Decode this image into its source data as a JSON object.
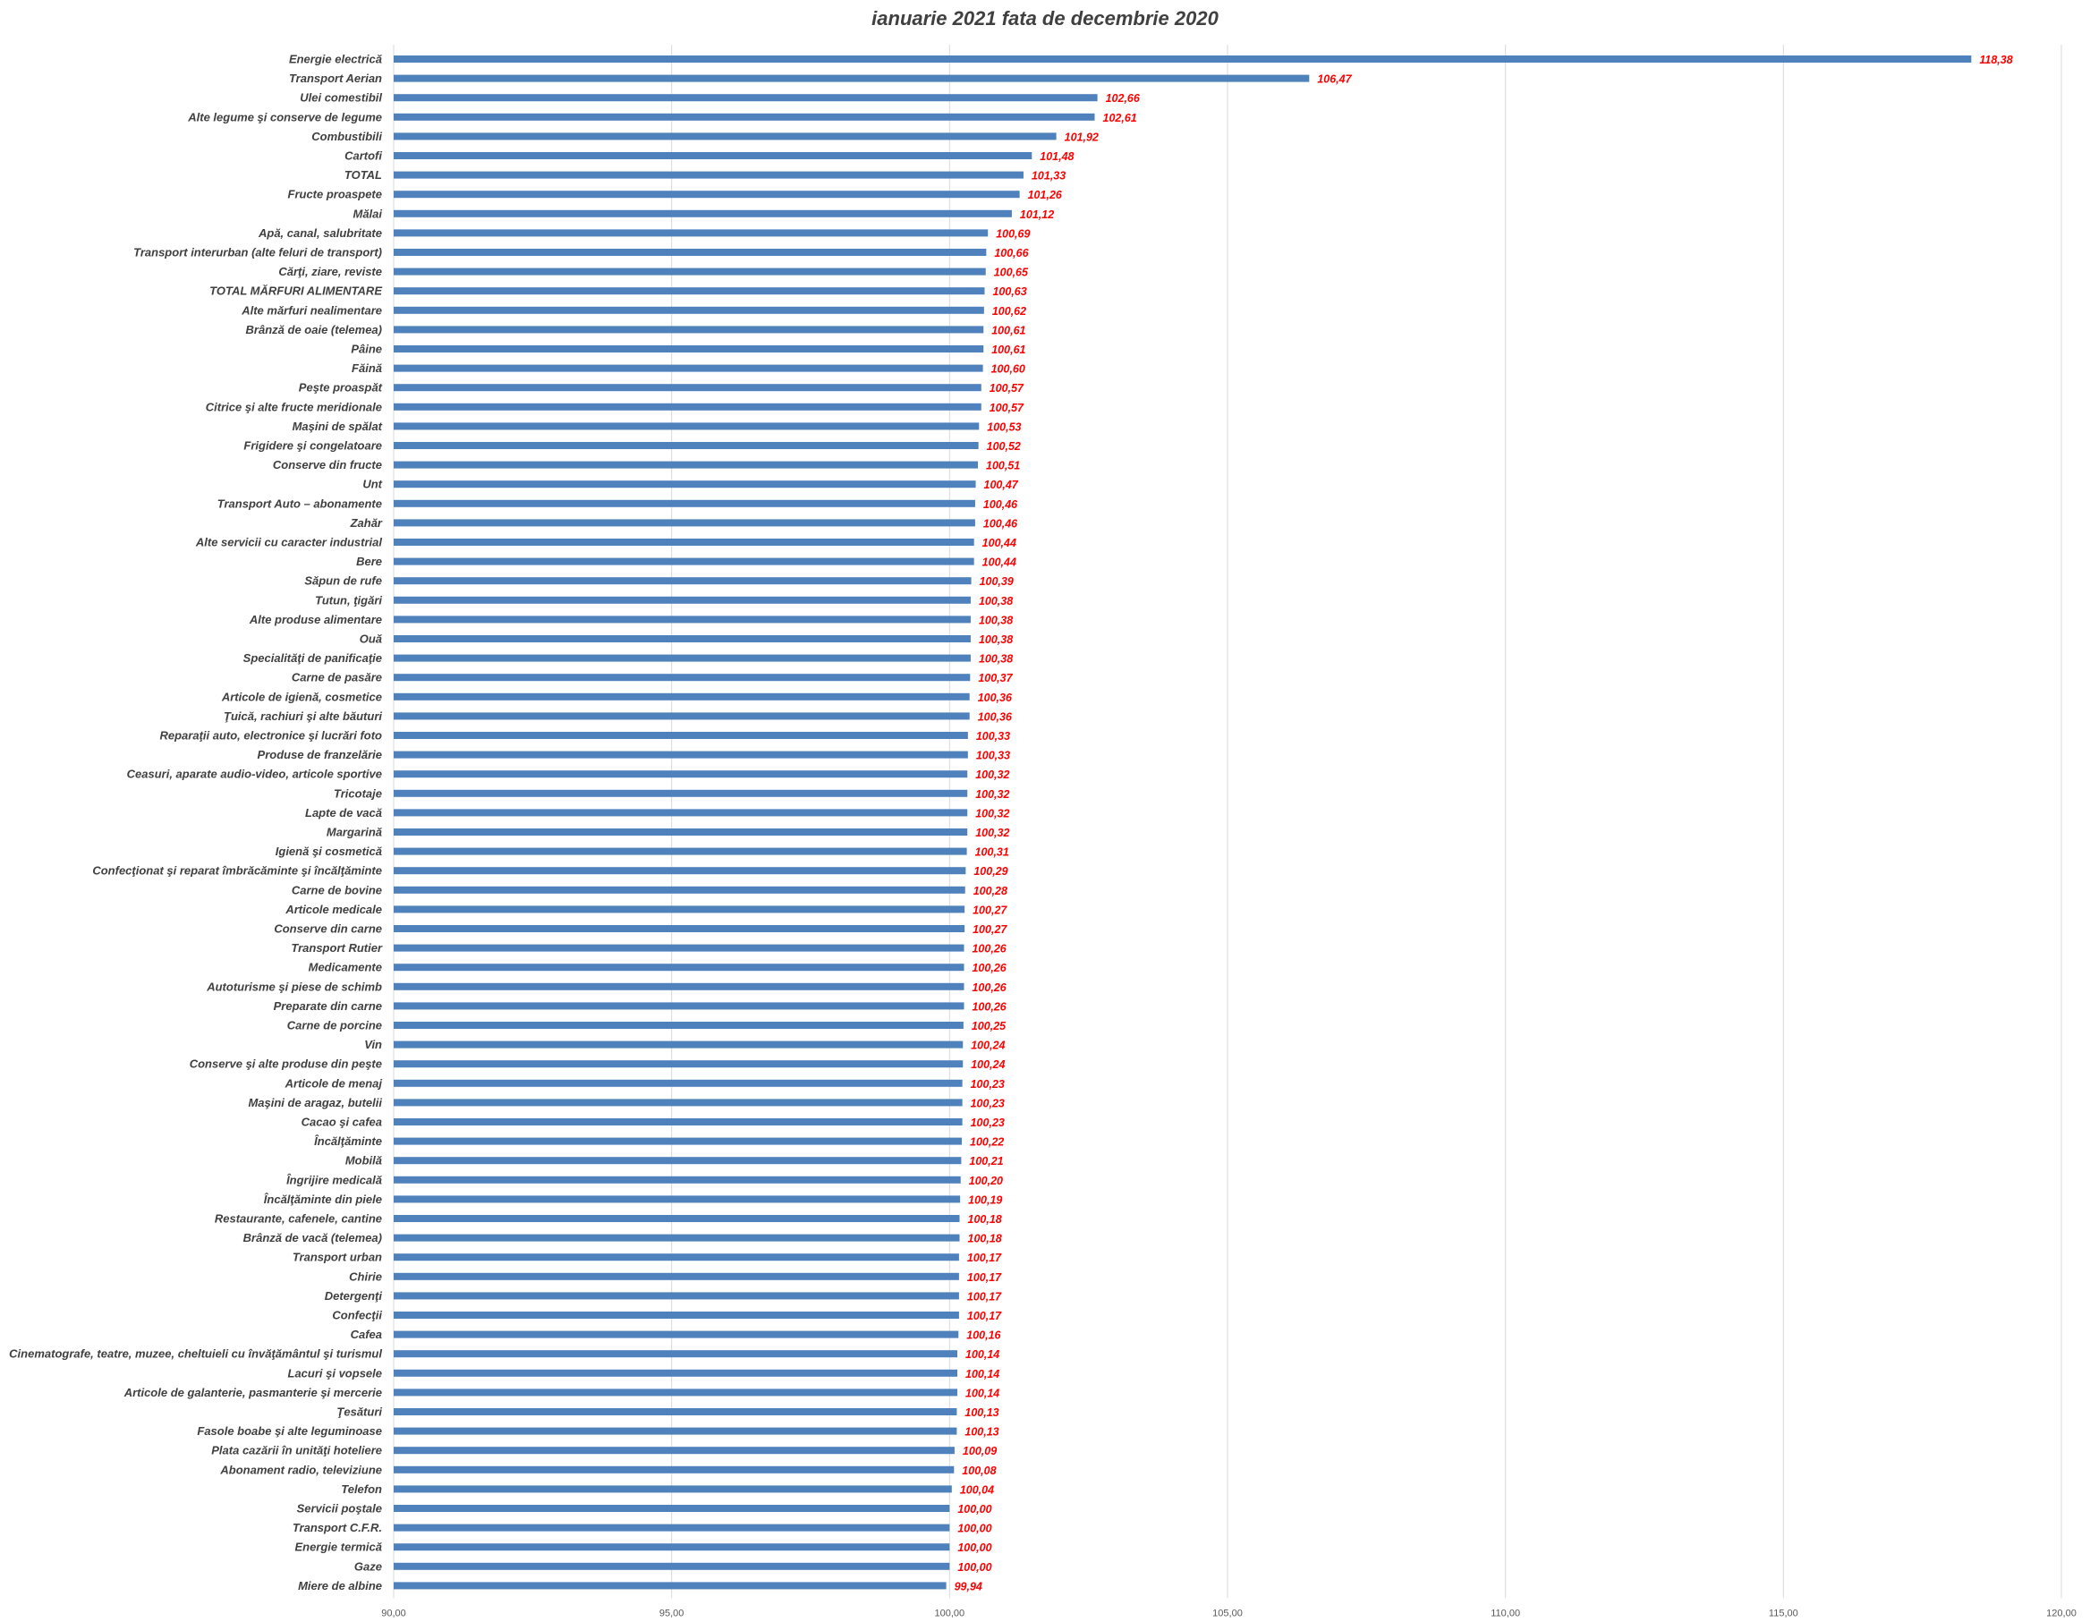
{
  "chart_data": {
    "type": "bar",
    "orientation": "horizontal",
    "title": "ianuarie 2021 fata de decembrie 2020",
    "xlim": [
      90,
      120
    ],
    "xticks": [
      "90,00",
      "95,00",
      "100,00",
      "105,00",
      "110,00",
      "115,00",
      "120,00"
    ],
    "grid": true,
    "legend": "none",
    "bar_color": "#4F81BD",
    "label_color": "#FF0000",
    "categories": [
      "Energie electrică",
      "Transport Aerian",
      "Ulei comestibil",
      "Alte legume şi conserve de legume",
      "Combustibili",
      "Cartofi",
      "TOTAL",
      "Fructe proaspete",
      "Mălai",
      "Apă, canal, salubritate",
      "Transport interurban (alte feluri de transport)",
      "Cărţi, ziare, reviste",
      "TOTAL MĂRFURI ALIMENTARE",
      "Alte mărfuri nealimentare",
      "Brânză de oaie (telemea)",
      "Pâine",
      "Făină",
      "Peşte proaspăt",
      "Citrice şi alte fructe meridionale",
      "Maşini de spălat",
      "Frigidere şi congelatoare",
      "Conserve din fructe",
      "Unt",
      "Transport Auto – abonamente",
      "Zahăr",
      "Alte servicii cu caracter industrial",
      "Bere",
      "Săpun de rufe",
      "Tutun, ţigări",
      "Alte produse alimentare",
      "Ouă",
      "Specialităţi de panificaţie",
      "Carne de pasăre",
      "Articole de igienă, cosmetice",
      "Ţuică, rachiuri şi alte băuturi",
      "Reparaţii auto, electronice şi lucrări foto",
      "Produse de franzelărie",
      "Ceasuri, aparate audio-video, articole sportive",
      "Tricotaje",
      "Lapte de vacă",
      "Margarină",
      "Igienă şi cosmetică",
      "Confecţionat şi reparat îmbrăcăminte şi încălţăminte",
      "Carne de bovine",
      "Articole medicale",
      "Conserve din carne",
      "Transport Rutier",
      "Medicamente",
      "Autoturisme şi piese de schimb",
      "Preparate din carne",
      "Carne de porcine",
      "Vin",
      "Conserve şi alte produse din peşte",
      "Articole de menaj",
      "Maşini de aragaz, butelii",
      "Cacao şi cafea",
      "Încălţăminte",
      "Mobilă",
      "Îngrijire medicală",
      "Încălţăminte din piele",
      "Restaurante, cafenele, cantine",
      "Brânză de vacă (telemea)",
      "Transport urban",
      "Chirie",
      "Detergenţi",
      "Confecţii",
      "Cafea",
      "Cinematografe, teatre, muzee, cheltuieli cu  învăţământul şi turismul",
      "Lacuri şi vopsele",
      "Articole de galanterie, pasmanterie şi mercerie",
      "Ţesături",
      "Fasole boabe şi alte leguminoase",
      "Plata cazării în unităţi hoteliere",
      "Abonament radio, televiziune",
      "Telefon",
      "Servicii poştale",
      "Transport C.F.R.",
      "Energie termică",
      "Gaze",
      "Miere de albine"
    ],
    "values": [
      118.38,
      106.47,
      102.66,
      102.61,
      101.92,
      101.48,
      101.33,
      101.26,
      101.12,
      100.69,
      100.66,
      100.65,
      100.63,
      100.62,
      100.61,
      100.61,
      100.6,
      100.57,
      100.57,
      100.53,
      100.52,
      100.51,
      100.47,
      100.46,
      100.46,
      100.44,
      100.44,
      100.39,
      100.38,
      100.38,
      100.38,
      100.38,
      100.37,
      100.36,
      100.36,
      100.33,
      100.33,
      100.32,
      100.32,
      100.32,
      100.32,
      100.31,
      100.29,
      100.28,
      100.27,
      100.27,
      100.26,
      100.26,
      100.26,
      100.26,
      100.25,
      100.24,
      100.24,
      100.23,
      100.23,
      100.23,
      100.22,
      100.21,
      100.2,
      100.19,
      100.18,
      100.18,
      100.17,
      100.17,
      100.17,
      100.17,
      100.16,
      100.14,
      100.14,
      100.14,
      100.13,
      100.13,
      100.09,
      100.08,
      100.04,
      100.0,
      100.0,
      100.0,
      100.0,
      99.94
    ],
    "value_labels": [
      "118,38",
      "106,47",
      "102,66",
      "102,61",
      "101,92",
      "101,48",
      "101,33",
      "101,26",
      "101,12",
      "100,69",
      "100,66",
      "100,65",
      "100,63",
      "100,62",
      "100,61",
      "100,61",
      "100,60",
      "100,57",
      "100,57",
      "100,53",
      "100,52",
      "100,51",
      "100,47",
      "100,46",
      "100,46",
      "100,44",
      "100,44",
      "100,39",
      "100,38",
      "100,38",
      "100,38",
      "100,38",
      "100,37",
      "100,36",
      "100,36",
      "100,33",
      "100,33",
      "100,32",
      "100,32",
      "100,32",
      "100,32",
      "100,31",
      "100,29",
      "100,28",
      "100,27",
      "100,27",
      "100,26",
      "100,26",
      "100,26",
      "100,26",
      "100,25",
      "100,24",
      "100,24",
      "100,23",
      "100,23",
      "100,23",
      "100,22",
      "100,21",
      "100,20",
      "100,19",
      "100,18",
      "100,18",
      "100,17",
      "100,17",
      "100,17",
      "100,17",
      "100,16",
      "100,14",
      "100,14",
      "100,14",
      "100,13",
      "100,13",
      "100,09",
      "100,08",
      "100,04",
      "100,00",
      "100,00",
      "100,00",
      "100,00",
      "99,94"
    ]
  }
}
